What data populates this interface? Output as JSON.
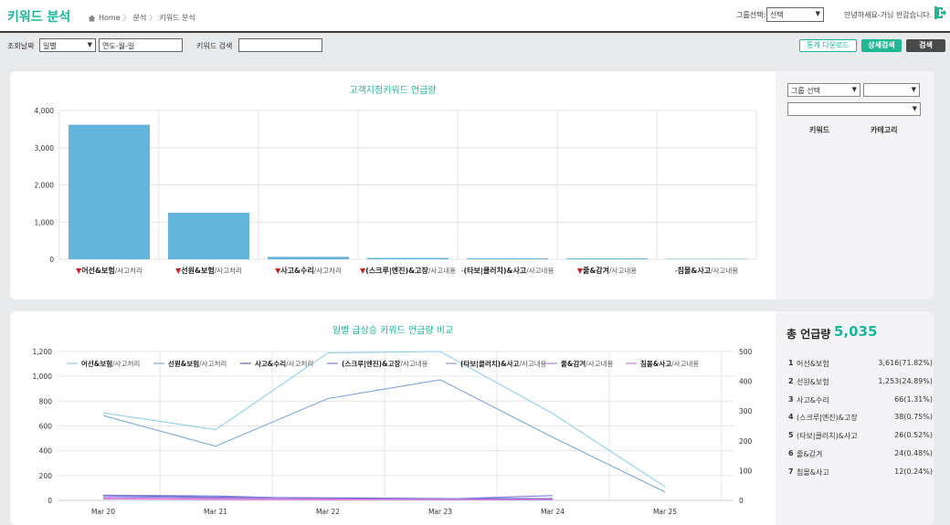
{
  "header": {
    "title": "키워드 분석",
    "breadcrumb": [
      "Home",
      "분석",
      "키워드 분석"
    ],
    "group_label": "그룹선택:",
    "group_value": "선택",
    "greeting": "안녕하세요-가님 반갑습니다."
  },
  "filters": {
    "date_label": "조회날짜",
    "period_value": "일별",
    "date_value": "연도-월-일",
    "keyword_label": "키워드 검색",
    "keyword_value": "",
    "download_label": "통계 다운로드",
    "advanced_label": "상세검색",
    "search_label": "검색"
  },
  "side1": {
    "group_select": "그룹 선택",
    "select2": "",
    "select3": "",
    "col_keyword": "키워드",
    "col_category": "카테고리"
  },
  "side2": {
    "total_label": "총 언급량",
    "total_value": "5,035",
    "ranks": [
      {
        "rank": "1",
        "name": "어선&보험",
        "value": "3,616(71.82%)"
      },
      {
        "rank": "2",
        "name": "선원&보험",
        "value": "1,253(24.89%)"
      },
      {
        "rank": "3",
        "name": "사고&수리",
        "value": "66(1.31%)"
      },
      {
        "rank": "4",
        "name": "(스크루|엔진)&고장",
        "value": "38(0.75%)"
      },
      {
        "rank": "5",
        "name": "(타보|클러치)&사고",
        "value": "26(0.52%)"
      },
      {
        "rank": "6",
        "name": "줄&감겨",
        "value": "24(0.48%)"
      },
      {
        "rank": "7",
        "name": "침몰&사고",
        "value": "12(0.24%)"
      }
    ]
  },
  "colors": {
    "accent": "#17b79b",
    "bar": "#63b4dc",
    "down_marker": "#cc1f1f"
  },
  "chart_data": [
    {
      "type": "bar",
      "title": "고객지정키워드 언급량",
      "categories": [
        {
          "marker": "▼",
          "keyword": "어선&보험",
          "category": "/사고처리"
        },
        {
          "marker": "▼",
          "keyword": "선원&보험",
          "category": "/사고처리"
        },
        {
          "marker": "▼",
          "keyword": "사고&수리",
          "category": "/사고처리"
        },
        {
          "marker": "▼",
          "keyword": "(스크루|엔진)&고장",
          "category": "/사고내용"
        },
        {
          "marker": "-",
          "keyword": "(타보|클러치)&사고",
          "category": "/사고내용"
        },
        {
          "marker": "▼",
          "keyword": "줄&감겨",
          "category": "/사고내용"
        },
        {
          "marker": "-",
          "keyword": "침몰&사고",
          "category": "/사고내용"
        }
      ],
      "values": [
        3616,
        1253,
        66,
        38,
        26,
        24,
        12
      ],
      "ylim": [
        0,
        4000
      ],
      "yticks": [
        "0",
        "1,000",
        "2,000",
        "3,000",
        "4,000"
      ],
      "grid": true
    },
    {
      "type": "line",
      "title": "일별 급상승 키워드 언급량 비교",
      "x": [
        "Mar 20",
        "Mar 21",
        "Mar 22",
        "Mar 23",
        "Mar 24",
        "Mar 25"
      ],
      "y_left": {
        "ylim": [
          0,
          1200
        ],
        "ticks": [
          "0",
          "200",
          "400",
          "600",
          "800",
          "1,000",
          "1,200"
        ]
      },
      "y_right": {
        "ylim": [
          0,
          500
        ],
        "ticks": [
          "0",
          "100",
          "200",
          "300",
          "400",
          "500"
        ]
      },
      "legend_position": "top",
      "series": [
        {
          "name": "어선&보험",
          "category": "/사고처리",
          "axis": "left",
          "color": "#8fd0ea",
          "values": [
            705,
            570,
            1190,
            1200,
            700,
            110
          ]
        },
        {
          "name": "선원&보험",
          "category": "/사고처리",
          "axis": "right",
          "color": "#7aa8dc",
          "values": [
            285,
            182,
            342,
            405,
            212,
            28
          ]
        },
        {
          "name": "사고&수리",
          "category": "/사고처리",
          "axis": "left",
          "color": "#5d62c8",
          "values": [
            40,
            25,
            20,
            15,
            15,
            null
          ]
        },
        {
          "name": "(스크루|엔진)&고장",
          "category": "/사고내용",
          "axis": "left",
          "color": "#7b7ee0",
          "values": [
            42,
            35,
            10,
            10,
            38,
            null
          ]
        },
        {
          "name": "(타보|클러치)&사고",
          "category": "/사고내용",
          "axis": "left",
          "color": "#9a8fe6",
          "values": [
            30,
            20,
            5,
            10,
            5,
            null
          ]
        },
        {
          "name": "줄&감겨",
          "category": "/사고내용",
          "axis": "left",
          "color": "#c57be0",
          "values": [
            20,
            15,
            12,
            5,
            5,
            null
          ]
        },
        {
          "name": "침몰&사고",
          "category": "/사고내용",
          "axis": "left",
          "color": "#e07bdc",
          "values": [
            10,
            8,
            5,
            5,
            5,
            null
          ]
        }
      ],
      "grid": true
    }
  ]
}
